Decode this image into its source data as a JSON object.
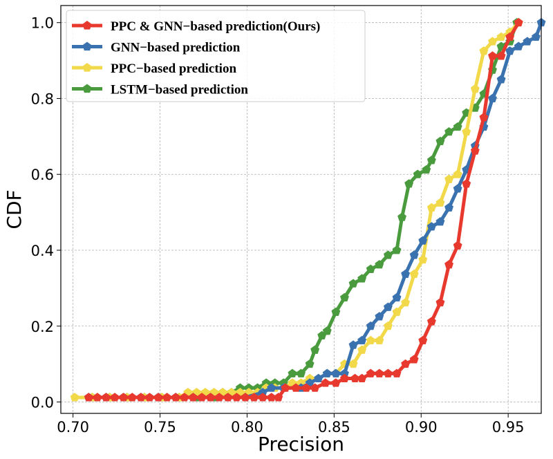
{
  "chart_data": {
    "type": "line",
    "xlabel": "Precision",
    "ylabel": "CDF",
    "xlim": [
      0.693,
      0.969
    ],
    "ylim": [
      -0.03,
      1.045
    ],
    "xticks": [
      0.7,
      0.75,
      0.8,
      0.85,
      0.9,
      0.95
    ],
    "xtick_labels": [
      "0.70",
      "0.75",
      "0.80",
      "0.85",
      "0.90",
      "0.95"
    ],
    "yticks": [
      0.0,
      0.2,
      0.4,
      0.6,
      0.8,
      1.0
    ],
    "ytick_labels": [
      "0.0",
      "0.2",
      "0.4",
      "0.6",
      "0.8",
      "1.0"
    ],
    "grid": true,
    "legend_position": "top-left",
    "series": [
      {
        "name": "PPC & GNN−based prediction(Ours)",
        "color": "#e8392e",
        "marker": "pentagon",
        "points": [
          [
            0.709,
            0.012
          ],
          [
            0.714,
            0.012
          ],
          [
            0.719,
            0.012
          ],
          [
            0.724,
            0.012
          ],
          [
            0.729,
            0.012
          ],
          [
            0.734,
            0.012
          ],
          [
            0.739,
            0.012
          ],
          [
            0.744,
            0.012
          ],
          [
            0.749,
            0.012
          ],
          [
            0.754,
            0.012
          ],
          [
            0.759,
            0.012
          ],
          [
            0.764,
            0.012
          ],
          [
            0.769,
            0.012
          ],
          [
            0.774,
            0.012
          ],
          [
            0.779,
            0.012
          ],
          [
            0.784,
            0.012
          ],
          [
            0.789,
            0.012
          ],
          [
            0.794,
            0.012
          ],
          [
            0.799,
            0.012
          ],
          [
            0.804,
            0.012
          ],
          [
            0.809,
            0.012
          ],
          [
            0.814,
            0.012
          ],
          [
            0.818,
            0.012
          ],
          [
            0.822,
            0.037
          ],
          [
            0.828,
            0.037
          ],
          [
            0.834,
            0.037
          ],
          [
            0.839,
            0.037
          ],
          [
            0.845,
            0.05
          ],
          [
            0.851,
            0.05
          ],
          [
            0.856,
            0.062
          ],
          [
            0.862,
            0.062
          ],
          [
            0.866,
            0.062
          ],
          [
            0.871,
            0.075
          ],
          [
            0.876,
            0.075
          ],
          [
            0.881,
            0.075
          ],
          [
            0.886,
            0.075
          ],
          [
            0.891,
            0.1
          ],
          [
            0.896,
            0.112
          ],
          [
            0.901,
            0.162
          ],
          [
            0.906,
            0.212
          ],
          [
            0.911,
            0.262
          ],
          [
            0.916,
            0.362
          ],
          [
            0.921,
            0.412
          ],
          [
            0.926,
            0.575
          ],
          [
            0.931,
            0.662
          ],
          [
            0.936,
            0.75
          ],
          [
            0.941,
            0.912
          ],
          [
            0.946,
            0.912
          ],
          [
            0.951,
            0.962
          ],
          [
            0.956,
            1.0
          ]
        ]
      },
      {
        "name": "GNN−based prediction",
        "color": "#3a72b0",
        "marker": "pentagon",
        "points": [
          [
            0.709,
            0.012
          ],
          [
            0.719,
            0.012
          ],
          [
            0.729,
            0.012
          ],
          [
            0.739,
            0.012
          ],
          [
            0.749,
            0.012
          ],
          [
            0.759,
            0.012
          ],
          [
            0.769,
            0.012
          ],
          [
            0.779,
            0.012
          ],
          [
            0.789,
            0.012
          ],
          [
            0.799,
            0.012
          ],
          [
            0.809,
            0.025
          ],
          [
            0.814,
            0.037
          ],
          [
            0.821,
            0.037
          ],
          [
            0.831,
            0.037
          ],
          [
            0.836,
            0.05
          ],
          [
            0.841,
            0.062
          ],
          [
            0.846,
            0.075
          ],
          [
            0.851,
            0.075
          ],
          [
            0.856,
            0.075
          ],
          [
            0.861,
            0.15
          ],
          [
            0.866,
            0.162
          ],
          [
            0.871,
            0.2
          ],
          [
            0.876,
            0.225
          ],
          [
            0.881,
            0.25
          ],
          [
            0.886,
            0.275
          ],
          [
            0.891,
            0.337
          ],
          [
            0.896,
            0.387
          ],
          [
            0.901,
            0.425
          ],
          [
            0.906,
            0.462
          ],
          [
            0.911,
            0.475
          ],
          [
            0.916,
            0.512
          ],
          [
            0.921,
            0.562
          ],
          [
            0.926,
            0.612
          ],
          [
            0.931,
            0.675
          ],
          [
            0.936,
            0.725
          ],
          [
            0.941,
            0.8
          ],
          [
            0.946,
            0.85
          ],
          [
            0.951,
            0.925
          ],
          [
            0.956,
            0.937
          ],
          [
            0.961,
            0.95
          ],
          [
            0.966,
            0.962
          ],
          [
            0.969,
            1.0
          ]
        ]
      },
      {
        "name": "PPC−based prediction",
        "color": "#f2d94a",
        "marker": "pentagon",
        "points": [
          [
            0.701,
            0.012
          ],
          [
            0.711,
            0.012
          ],
          [
            0.721,
            0.012
          ],
          [
            0.731,
            0.012
          ],
          [
            0.741,
            0.012
          ],
          [
            0.751,
            0.012
          ],
          [
            0.761,
            0.012
          ],
          [
            0.766,
            0.025
          ],
          [
            0.771,
            0.025
          ],
          [
            0.776,
            0.025
          ],
          [
            0.781,
            0.025
          ],
          [
            0.786,
            0.025
          ],
          [
            0.791,
            0.025
          ],
          [
            0.796,
            0.025
          ],
          [
            0.801,
            0.025
          ],
          [
            0.806,
            0.025
          ],
          [
            0.811,
            0.037
          ],
          [
            0.816,
            0.037
          ],
          [
            0.821,
            0.037
          ],
          [
            0.826,
            0.05
          ],
          [
            0.831,
            0.05
          ],
          [
            0.836,
            0.062
          ],
          [
            0.841,
            0.062
          ],
          [
            0.846,
            0.075
          ],
          [
            0.851,
            0.075
          ],
          [
            0.856,
            0.1
          ],
          [
            0.861,
            0.1
          ],
          [
            0.866,
            0.137
          ],
          [
            0.871,
            0.162
          ],
          [
            0.876,
            0.162
          ],
          [
            0.881,
            0.2
          ],
          [
            0.886,
            0.237
          ],
          [
            0.891,
            0.262
          ],
          [
            0.896,
            0.337
          ],
          [
            0.901,
            0.375
          ],
          [
            0.906,
            0.512
          ],
          [
            0.911,
            0.525
          ],
          [
            0.916,
            0.587
          ],
          [
            0.921,
            0.6
          ],
          [
            0.926,
            0.712
          ],
          [
            0.931,
            0.825
          ],
          [
            0.936,
            0.925
          ],
          [
            0.941,
            0.95
          ],
          [
            0.946,
            0.962
          ],
          [
            0.951,
            0.975
          ],
          [
            0.956,
            1.0
          ]
        ]
      },
      {
        "name": "LSTM−based prediction",
        "color": "#4a9a3e",
        "marker": "pentagon",
        "points": [
          [
            0.711,
            0.012
          ],
          [
            0.721,
            0.012
          ],
          [
            0.731,
            0.012
          ],
          [
            0.741,
            0.012
          ],
          [
            0.751,
            0.012
          ],
          [
            0.761,
            0.012
          ],
          [
            0.771,
            0.012
          ],
          [
            0.781,
            0.012
          ],
          [
            0.786,
            0.025
          ],
          [
            0.791,
            0.025
          ],
          [
            0.796,
            0.037
          ],
          [
            0.801,
            0.037
          ],
          [
            0.806,
            0.037
          ],
          [
            0.811,
            0.05
          ],
          [
            0.816,
            0.05
          ],
          [
            0.821,
            0.05
          ],
          [
            0.826,
            0.075
          ],
          [
            0.831,
            0.075
          ],
          [
            0.836,
            0.1
          ],
          [
            0.839,
            0.137
          ],
          [
            0.843,
            0.175
          ],
          [
            0.846,
            0.187
          ],
          [
            0.851,
            0.237
          ],
          [
            0.856,
            0.275
          ],
          [
            0.861,
            0.312
          ],
          [
            0.866,
            0.325
          ],
          [
            0.871,
            0.35
          ],
          [
            0.876,
            0.362
          ],
          [
            0.881,
            0.387
          ],
          [
            0.886,
            0.4
          ],
          [
            0.889,
            0.487
          ],
          [
            0.893,
            0.575
          ],
          [
            0.898,
            0.6
          ],
          [
            0.903,
            0.612
          ],
          [
            0.906,
            0.637
          ],
          [
            0.911,
            0.687
          ],
          [
            0.916,
            0.712
          ],
          [
            0.921,
            0.725
          ],
          [
            0.926,
            0.762
          ],
          [
            0.931,
            0.775
          ],
          [
            0.936,
            0.812
          ],
          [
            0.941,
            0.875
          ],
          [
            0.946,
            0.937
          ],
          [
            0.951,
            0.95
          ],
          [
            0.955,
            1.0
          ]
        ]
      }
    ]
  }
}
